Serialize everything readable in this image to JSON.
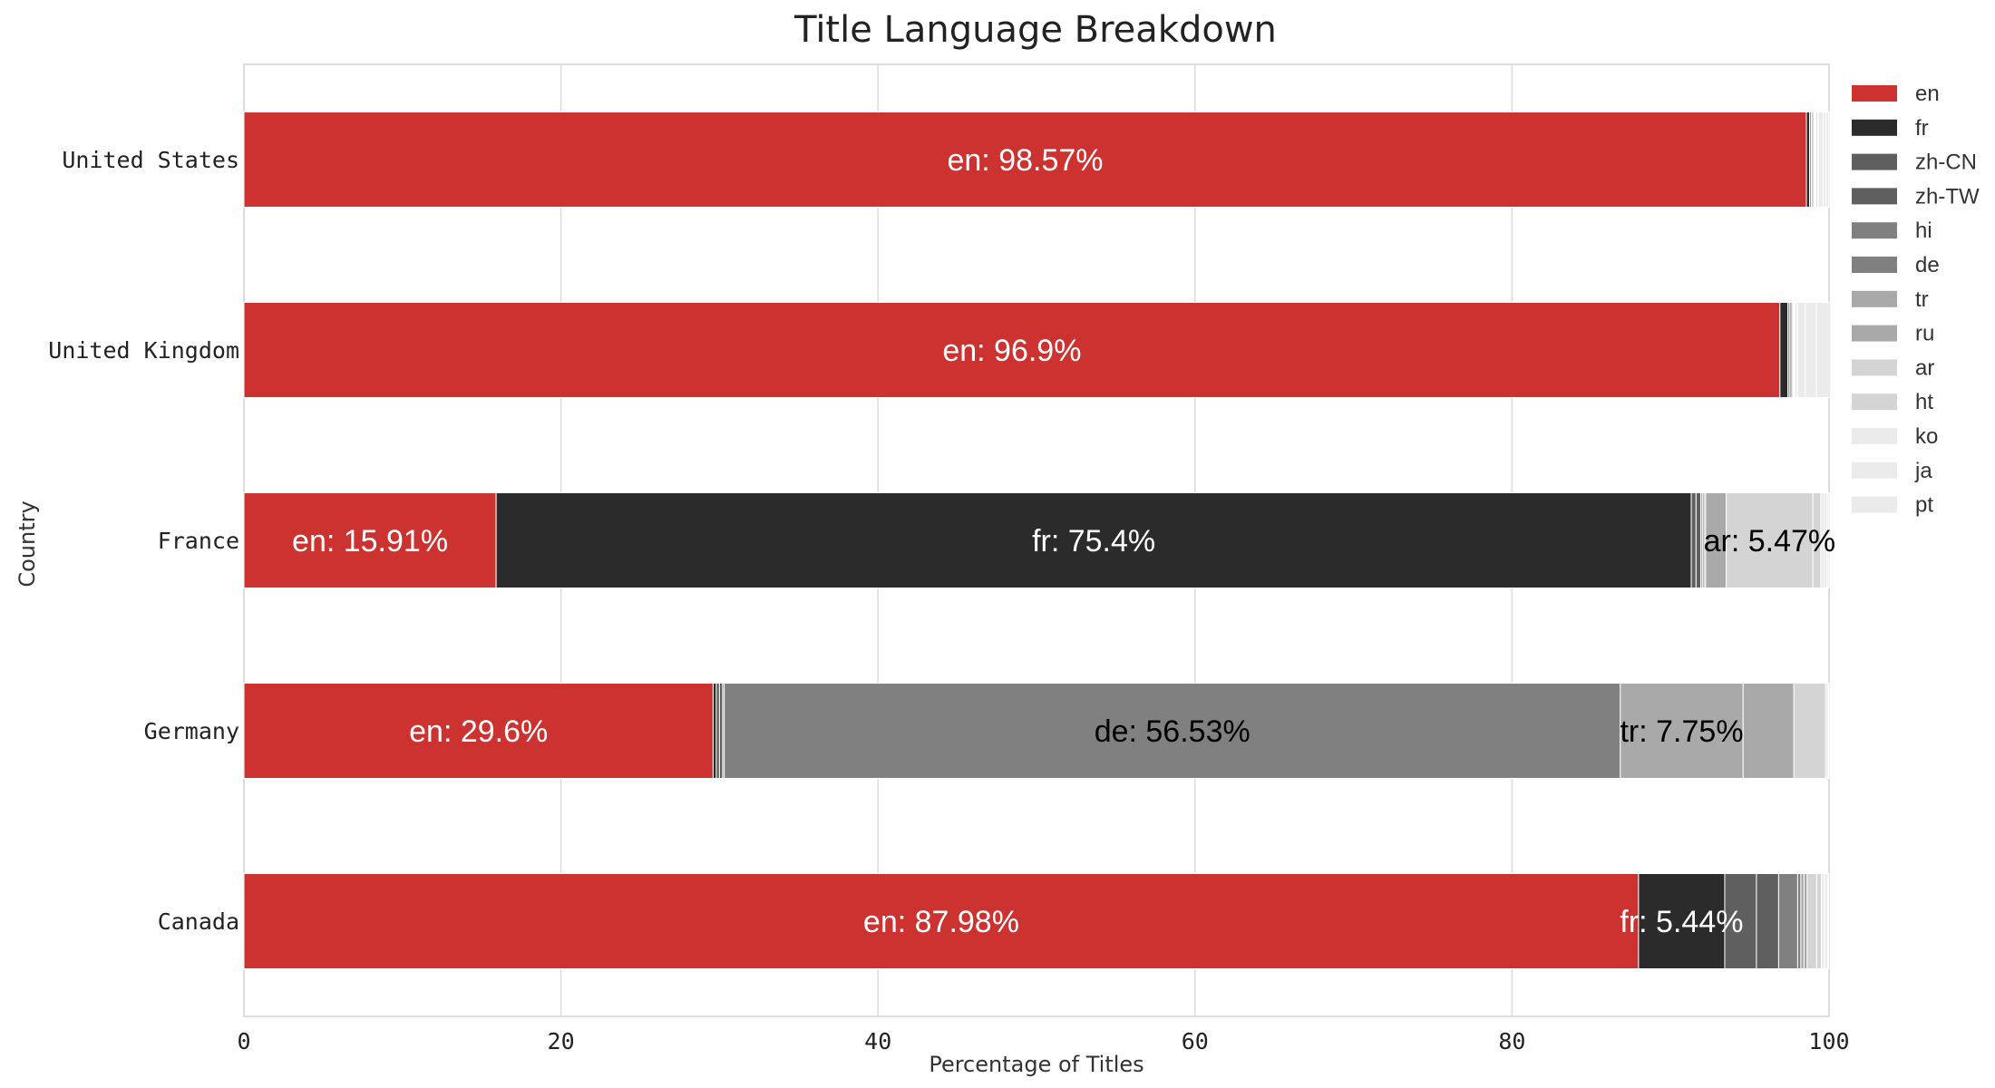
{
  "chart_data": {
    "type": "bar",
    "orientation": "horizontal",
    "stacked": true,
    "title": "Title Language Breakdown",
    "xlabel": "Percentage of Titles",
    "ylabel": "Country",
    "xlim": [
      0,
      100
    ],
    "xticks": [
      0,
      20,
      40,
      60,
      80,
      100
    ],
    "grid": true,
    "legend_position": "top-right",
    "categories": [
      "United States",
      "United Kingdom",
      "France",
      "Germany",
      "Canada"
    ],
    "series": [
      {
        "name": "en",
        "color": "#cc3330",
        "values": [
          98.57,
          96.9,
          15.91,
          29.6,
          87.98
        ]
      },
      {
        "name": "fr",
        "color": "#2b2b2b",
        "values": [
          0.2,
          0.5,
          75.4,
          0.2,
          5.44
        ]
      },
      {
        "name": "zh-CN",
        "color": "#5f5f5f",
        "values": [
          0.1,
          0.1,
          0.3,
          0.2,
          2.0
        ]
      },
      {
        "name": "zh-TW",
        "color": "#5f5f5f",
        "values": [
          0.05,
          0.1,
          0.3,
          0.2,
          1.4
        ]
      },
      {
        "name": "hi",
        "color": "#808080",
        "values": [
          0.1,
          0.1,
          0.1,
          0.1,
          1.2
        ]
      },
      {
        "name": "de",
        "color": "#808080",
        "values": [
          0.05,
          0.05,
          0.1,
          56.53,
          0.2
        ]
      },
      {
        "name": "tr",
        "color": "#a9a9a9",
        "values": [
          0.05,
          0.05,
          0.1,
          7.75,
          0.2
        ]
      },
      {
        "name": "ru",
        "color": "#a9a9a9",
        "values": [
          0.05,
          0.05,
          1.3,
          3.2,
          0.2
        ]
      },
      {
        "name": "ar",
        "color": "#d4d4d4",
        "values": [
          0.1,
          0.1,
          5.47,
          2.0,
          0.6
        ]
      },
      {
        "name": "ht",
        "color": "#d4d4d4",
        "values": [
          0.05,
          0.05,
          0.5,
          0.1,
          0.3
        ]
      },
      {
        "name": "ko",
        "color": "#ebebeb",
        "values": [
          0.3,
          0.5,
          0.2,
          0.1,
          0.2
        ]
      },
      {
        "name": "ja",
        "color": "#ebebeb",
        "values": [
          0.2,
          0.7,
          0.2,
          0.1,
          0.2
        ]
      },
      {
        "name": "pt",
        "color": "#ebebeb",
        "values": [
          0.18,
          0.9,
          0.12,
          0.02,
          0.06
        ]
      }
    ],
    "label_threshold": 5
  }
}
